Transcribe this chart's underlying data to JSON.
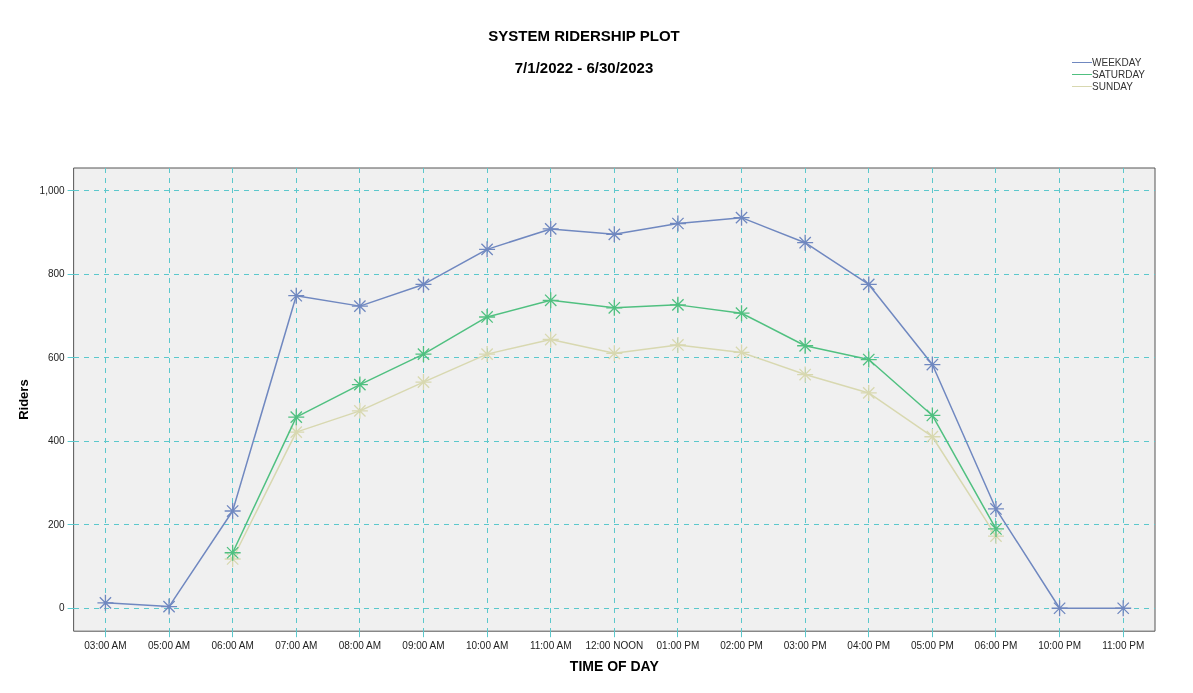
{
  "chart_data": {
    "type": "line",
    "title": "SYSTEM RIDERSHIP PLOT",
    "subtitle": "7/1/2022 - 6/30/2023",
    "xlabel": "TIME OF DAY",
    "ylabel": "Riders",
    "categories": [
      "03:00 AM",
      "05:00 AM",
      "06:00 AM",
      "07:00 AM",
      "08:00 AM",
      "09:00 AM",
      "10:00 AM",
      "11:00 AM",
      "12:00 NOON",
      "01:00 PM",
      "02:00 PM",
      "03:00 PM",
      "04:00 PM",
      "05:00 PM",
      "06:00 PM",
      "10:00 PM",
      "11:00 PM"
    ],
    "series": [
      {
        "name": "WEEKDAY",
        "color": "#7088c0",
        "values": [
          13,
          4,
          233,
          749,
          724,
          776,
          860,
          909,
          896,
          922,
          936,
          876,
          776,
          584,
          238,
          0,
          0
        ]
      },
      {
        "name": "SATURDAY",
        "color": "#50c080",
        "values": [
          null,
          null,
          133,
          458,
          536,
          609,
          698,
          738,
          720,
          727,
          707,
          629,
          596,
          462,
          190,
          null,
          null
        ]
      },
      {
        "name": "SUNDAY",
        "color": "#d8d8b0",
        "values": [
          null,
          null,
          118,
          422,
          473,
          542,
          609,
          644,
          611,
          631,
          613,
          560,
          516,
          411,
          173,
          null,
          null
        ]
      }
    ],
    "ylim": [
      -55,
      1055
    ],
    "yticks": [
      {
        "value": 0,
        "label": "0"
      },
      {
        "value": 200,
        "label": "200"
      },
      {
        "value": 400,
        "label": "400"
      },
      {
        "value": 600,
        "label": "600"
      },
      {
        "value": 800,
        "label": "800"
      },
      {
        "value": 1000,
        "label": "1,000"
      }
    ],
    "grid": true,
    "legend": "top right",
    "marker": "cross",
    "line_style": "solid"
  }
}
